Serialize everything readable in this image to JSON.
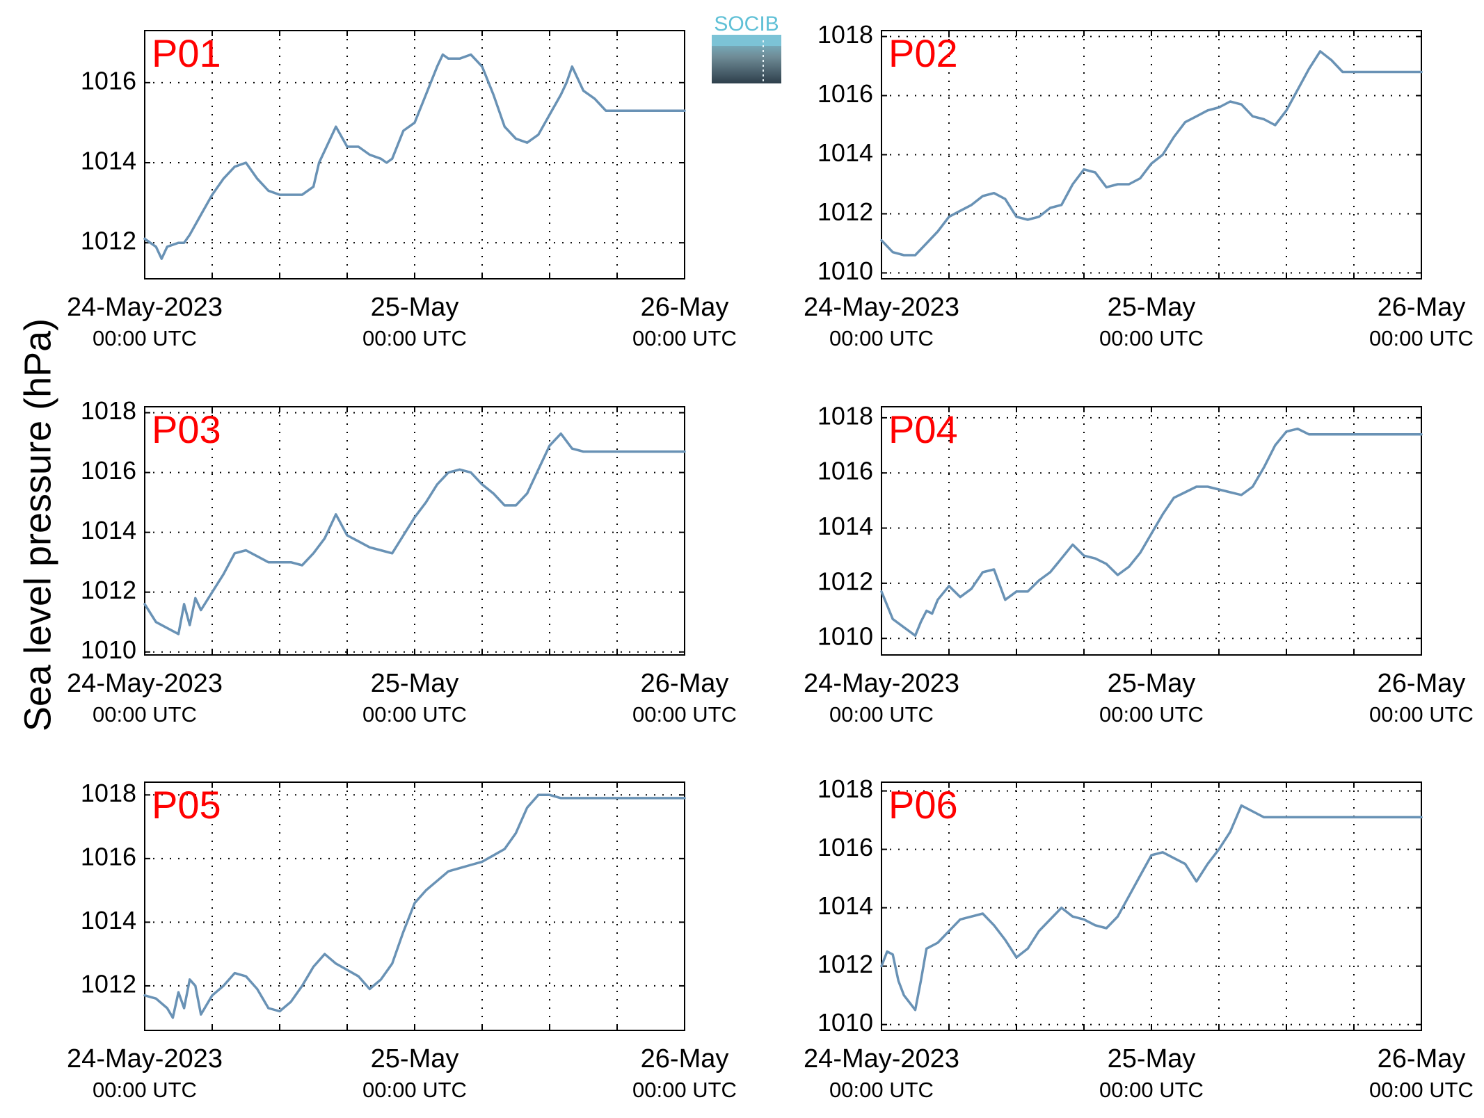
{
  "ylabel": "Sea level pressure (hPa)",
  "logo": {
    "text": "SOCIB",
    "colors": {
      "top": "#7cc3d6",
      "bottom": "#2e3f4b",
      "text": "#5fc0d6"
    }
  },
  "colors": {
    "line": "#6992b5",
    "panel_label": "#ff0000"
  },
  "x_tick_labels": [
    {
      "top": "24-May-2023",
      "bottom": "00:00 UTC"
    },
    {
      "top": "25-May",
      "bottom": "00:00 UTC"
    },
    {
      "top": "26-May",
      "bottom": "00:00 UTC"
    }
  ],
  "chart_data": [
    {
      "type": "line",
      "label": "P01",
      "xlim": [
        0,
        48
      ],
      "ylim": [
        1011.1,
        1017.3
      ],
      "yticks": [
        1012,
        1014,
        1016
      ],
      "grid": true,
      "x": [
        0,
        1,
        1.5,
        2,
        3,
        3.5,
        4,
        5,
        6,
        7,
        8,
        9,
        10,
        11,
        12,
        13,
        14,
        15,
        15.5,
        16,
        17,
        18,
        19,
        20,
        21,
        21.5,
        22,
        23,
        24,
        25,
        26,
        26.5,
        27,
        28,
        29,
        30,
        31,
        32,
        33,
        34,
        35,
        36,
        37,
        37.5,
        38,
        39,
        40,
        41,
        41.5,
        42,
        43,
        44,
        45,
        46,
        47,
        48
      ],
      "y": [
        1012.1,
        1011.9,
        1011.6,
        1011.9,
        1012.0,
        1012.0,
        1012.2,
        1012.7,
        1013.2,
        1013.6,
        1013.9,
        1014.0,
        1013.6,
        1013.3,
        1013.2,
        1013.2,
        1013.2,
        1013.4,
        1014.0,
        1014.3,
        1014.9,
        1014.4,
        1014.4,
        1014.2,
        1014.1,
        1014.0,
        1014.1,
        1014.8,
        1015.0,
        1015.7,
        1016.4,
        1016.7,
        1016.6,
        1016.6,
        1016.7,
        1016.4,
        1015.7,
        1014.9,
        1014.6,
        1014.5,
        1014.7,
        1015.2,
        1015.7,
        1016.0,
        1016.4,
        1015.8,
        1015.6,
        1015.3,
        1015.3,
        1015.3,
        1015.3,
        1015.3,
        1015.3,
        1015.3,
        1015.3,
        1015.3
      ]
    },
    {
      "type": "line",
      "label": "P02",
      "xlim": [
        0,
        48
      ],
      "ylim": [
        1009.8,
        1018.2
      ],
      "yticks": [
        1010,
        1012,
        1014,
        1016,
        1018
      ],
      "grid": true,
      "x": [
        0,
        1,
        2,
        3,
        4,
        5,
        6,
        7,
        8,
        9,
        10,
        11,
        12,
        13,
        14,
        15,
        16,
        17,
        18,
        19,
        20,
        21,
        22,
        23,
        24,
        25,
        26,
        27,
        28,
        29,
        30,
        31,
        32,
        33,
        34,
        35,
        36,
        37,
        38,
        39,
        40,
        41,
        42,
        43,
        44,
        45,
        46,
        47,
        48
      ],
      "y": [
        1011.1,
        1010.7,
        1010.6,
        1010.6,
        1011.0,
        1011.4,
        1011.9,
        1012.1,
        1012.3,
        1012.6,
        1012.7,
        1012.5,
        1011.9,
        1011.8,
        1011.9,
        1012.2,
        1012.3,
        1013.0,
        1013.5,
        1013.4,
        1012.9,
        1013.0,
        1013.0,
        1013.2,
        1013.7,
        1014.0,
        1014.6,
        1015.1,
        1015.3,
        1015.5,
        1015.6,
        1015.8,
        1015.7,
        1015.3,
        1015.2,
        1015.0,
        1015.5,
        1016.2,
        1016.9,
        1017.5,
        1017.2,
        1016.8,
        1016.8,
        1016.8,
        1016.8,
        1016.8,
        1016.8,
        1016.8,
        1016.8
      ]
    },
    {
      "type": "line",
      "label": "P03",
      "xlim": [
        0,
        48
      ],
      "ylim": [
        1009.9,
        1018.2
      ],
      "yticks": [
        1010,
        1012,
        1014,
        1016,
        1018
      ],
      "grid": true,
      "x": [
        0,
        1,
        2,
        3,
        3.5,
        4,
        4.5,
        5,
        6,
        7,
        8,
        9,
        10,
        11,
        12,
        13,
        14,
        15,
        16,
        17,
        18,
        19,
        20,
        21,
        22,
        23,
        24,
        25,
        26,
        27,
        28,
        29,
        30,
        31,
        32,
        33,
        34,
        35,
        36,
        37,
        38,
        39,
        40,
        41,
        42,
        43,
        44,
        45,
        46,
        47,
        48
      ],
      "y": [
        1011.6,
        1011.0,
        1010.8,
        1010.6,
        1011.6,
        1010.9,
        1011.8,
        1011.4,
        1012.0,
        1012.6,
        1013.3,
        1013.4,
        1013.2,
        1013.0,
        1013.0,
        1013.0,
        1012.9,
        1013.3,
        1013.8,
        1014.6,
        1013.9,
        1013.7,
        1013.5,
        1013.4,
        1013.3,
        1013.9,
        1014.5,
        1015.0,
        1015.6,
        1016.0,
        1016.1,
        1016.0,
        1015.6,
        1015.3,
        1014.9,
        1014.9,
        1015.3,
        1016.1,
        1016.9,
        1017.3,
        1016.8,
        1016.7,
        1016.7,
        1016.7,
        1016.7,
        1016.7,
        1016.7,
        1016.7,
        1016.7,
        1016.7,
        1016.7
      ]
    },
    {
      "type": "line",
      "label": "P04",
      "xlim": [
        0,
        48
      ],
      "ylim": [
        1009.4,
        1018.4
      ],
      "yticks": [
        1010,
        1012,
        1014,
        1016,
        1018
      ],
      "grid": true,
      "x": [
        0,
        1,
        2,
        3,
        3.5,
        4,
        4.5,
        5,
        6,
        7,
        8,
        9,
        10,
        11,
        12,
        13,
        14,
        15,
        16,
        17,
        18,
        19,
        20,
        21,
        22,
        23,
        24,
        25,
        26,
        27,
        28,
        29,
        30,
        31,
        32,
        33,
        34,
        35,
        36,
        37,
        38,
        39,
        40,
        41,
        42,
        43,
        44,
        45,
        46,
        47,
        48
      ],
      "y": [
        1011.7,
        1010.7,
        1010.4,
        1010.1,
        1010.6,
        1011.0,
        1010.9,
        1011.4,
        1011.9,
        1011.5,
        1011.8,
        1012.4,
        1012.5,
        1011.4,
        1011.7,
        1011.7,
        1012.1,
        1012.4,
        1012.9,
        1013.4,
        1013.0,
        1012.9,
        1012.7,
        1012.3,
        1012.6,
        1013.1,
        1013.8,
        1014.5,
        1015.1,
        1015.3,
        1015.5,
        1015.5,
        1015.4,
        1015.3,
        1015.2,
        1015.5,
        1016.2,
        1017.0,
        1017.5,
        1017.6,
        1017.4,
        1017.4,
        1017.4,
        1017.4,
        1017.4,
        1017.4,
        1017.4,
        1017.4,
        1017.4,
        1017.4,
        1017.4
      ]
    },
    {
      "type": "line",
      "label": "P05",
      "xlim": [
        0,
        48
      ],
      "ylim": [
        1010.6,
        1018.4
      ],
      "yticks": [
        1012,
        1014,
        1016,
        1018
      ],
      "grid": true,
      "x": [
        0,
        1,
        2,
        2.5,
        3,
        3.5,
        4,
        4.5,
        5,
        5.5,
        6,
        7,
        8,
        9,
        10,
        11,
        12,
        13,
        14,
        15,
        16,
        17,
        18,
        19,
        20,
        21,
        22,
        23,
        24,
        25,
        26,
        27,
        28,
        29,
        30,
        31,
        32,
        33,
        34,
        35,
        36,
        37,
        38,
        39,
        40,
        41,
        42,
        43,
        44,
        45,
        46,
        47,
        48
      ],
      "y": [
        1011.7,
        1011.6,
        1011.3,
        1011.0,
        1011.8,
        1011.3,
        1012.2,
        1012.0,
        1011.1,
        1011.4,
        1011.7,
        1012.0,
        1012.4,
        1012.3,
        1011.9,
        1011.3,
        1011.2,
        1011.5,
        1012.0,
        1012.6,
        1013.0,
        1012.7,
        1012.5,
        1012.3,
        1011.9,
        1012.2,
        1012.7,
        1013.7,
        1014.6,
        1015.0,
        1015.3,
        1015.6,
        1015.7,
        1015.8,
        1015.9,
        1016.1,
        1016.3,
        1016.8,
        1017.6,
        1018.0,
        1018.0,
        1017.9,
        1017.9,
        1017.9,
        1017.9,
        1017.9,
        1017.9,
        1017.9,
        1017.9,
        1017.9,
        1017.9,
        1017.9,
        1017.9
      ]
    },
    {
      "type": "line",
      "label": "P06",
      "xlim": [
        0,
        48
      ],
      "ylim": [
        1009.8,
        1018.3
      ],
      "yticks": [
        1010,
        1012,
        1014,
        1016,
        1018
      ],
      "grid": true,
      "x": [
        0,
        0.5,
        1,
        1.5,
        2,
        3,
        3.5,
        4,
        5,
        6,
        7,
        8,
        9,
        10,
        11,
        12,
        13,
        14,
        15,
        16,
        17,
        18,
        19,
        20,
        21,
        22,
        23,
        24,
        25,
        26,
        27,
        28,
        29,
        30,
        31,
        32,
        33,
        34,
        35,
        36,
        37,
        38,
        39,
        40,
        41,
        42,
        43,
        44,
        45,
        46,
        47,
        48
      ],
      "y": [
        1012.0,
        1012.5,
        1012.4,
        1011.5,
        1011.0,
        1010.5,
        1011.5,
        1012.6,
        1012.8,
        1013.2,
        1013.6,
        1013.7,
        1013.8,
        1013.4,
        1012.9,
        1012.3,
        1012.6,
        1013.2,
        1013.6,
        1014.0,
        1013.7,
        1013.6,
        1013.4,
        1013.3,
        1013.7,
        1014.4,
        1015.1,
        1015.8,
        1015.9,
        1015.7,
        1015.5,
        1014.9,
        1015.5,
        1016.0,
        1016.6,
        1017.5,
        1017.3,
        1017.1,
        1017.1,
        1017.1,
        1017.1,
        1017.1,
        1017.1,
        1017.1,
        1017.1,
        1017.1,
        1017.1,
        1017.1,
        1017.1,
        1017.1,
        1017.1,
        1017.1
      ]
    }
  ]
}
